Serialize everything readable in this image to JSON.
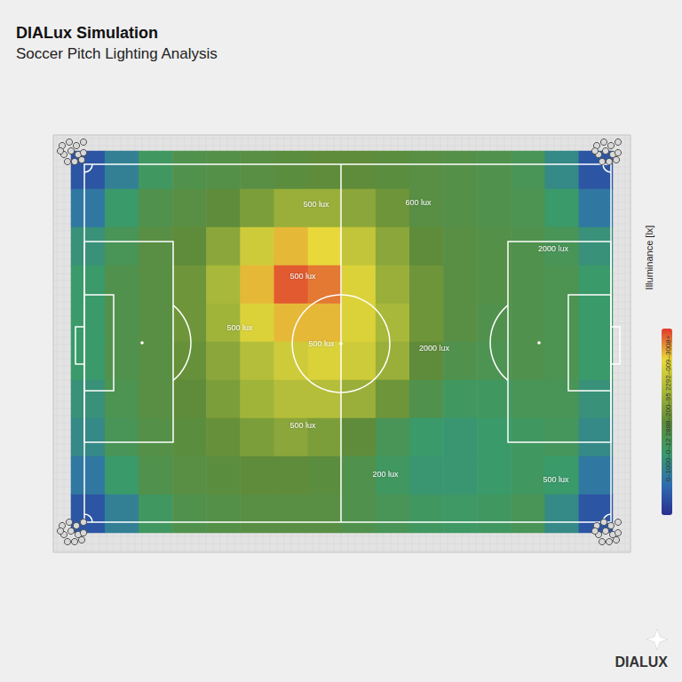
{
  "chart_data": {
    "type": "heatmap",
    "title": "DIALux Simulation",
    "subtitle": "Soccer Pitch Lighting Analysis",
    "cells": [
      [
        300,
        700,
        1100,
        1300,
        1350,
        1400,
        1450,
        1500,
        1500,
        1450,
        1400,
        1350,
        1300,
        1200,
        800,
        300
      ],
      [
        600,
        1000,
        1300,
        1400,
        1500,
        1700,
        1900,
        1900,
        1800,
        1600,
        1400,
        1350,
        1300,
        1250,
        1000,
        600
      ],
      [
        900,
        1200,
        1400,
        1500,
        1800,
        2300,
        2600,
        2500,
        2200,
        1800,
        1500,
        1400,
        1350,
        1300,
        1200,
        900
      ],
      [
        1000,
        1300,
        1400,
        1600,
        2000,
        2600,
        2900,
        2800,
        2400,
        1900,
        1600,
        1400,
        1350,
        1300,
        1250,
        1000
      ],
      [
        1000,
        1300,
        1400,
        1600,
        1950,
        2400,
        2600,
        2600,
        2400,
        2000,
        1600,
        1400,
        1300,
        1300,
        1250,
        1000
      ],
      [
        1000,
        1300,
        1400,
        1550,
        1800,
        2100,
        2300,
        2400,
        2300,
        1900,
        1500,
        1300,
        1250,
        1300,
        1250,
        1000
      ],
      [
        900,
        1250,
        1400,
        1500,
        1700,
        1950,
        2100,
        2100,
        1900,
        1600,
        1300,
        1100,
        1100,
        1200,
        1200,
        900
      ],
      [
        800,
        1200,
        1350,
        1450,
        1550,
        1700,
        1800,
        1700,
        1500,
        1200,
        1000,
        950,
        1000,
        1100,
        1150,
        800
      ],
      [
        600,
        1000,
        1300,
        1400,
        1450,
        1500,
        1500,
        1450,
        1300,
        1100,
        950,
        950,
        1000,
        1100,
        1000,
        600
      ],
      [
        300,
        700,
        1100,
        1300,
        1350,
        1400,
        1400,
        1400,
        1300,
        1200,
        1100,
        1050,
        1100,
        1200,
        800,
        300
      ]
    ],
    "colorbar_range": [
      0,
      3000
    ],
    "colorbar_title": "Illuminance [lx]",
    "colorbar_label": "0–1000–0–12 2888–200–95 2292–009–3008+",
    "annotations": [
      "500 lux",
      "600 lux",
      "2000 lux",
      "500 lux",
      "500 lux",
      "500 lux",
      "2000 lux",
      "500 lux",
      "200 lux",
      "500 lux"
    ],
    "logo": "DIALUX"
  }
}
